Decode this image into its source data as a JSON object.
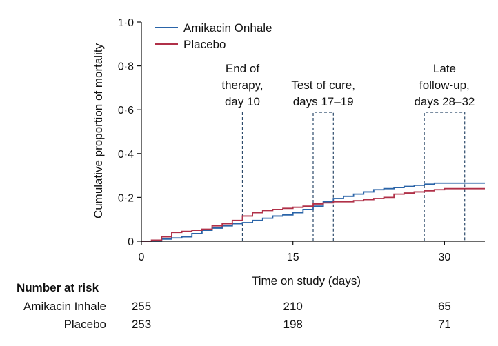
{
  "chart_data": {
    "type": "line",
    "step": true,
    "xlabel": "Time on study (days)",
    "ylabel": "Cumulative proportion of mortality",
    "xlim": [
      0,
      34
    ],
    "ylim": [
      0,
      1.0
    ],
    "xticks": [
      0,
      15,
      30
    ],
    "yticks": [
      {
        "value": 0,
        "label": "0"
      },
      {
        "value": 0.2,
        "label": "0·2"
      },
      {
        "value": 0.4,
        "label": "0·4"
      },
      {
        "value": 0.6,
        "label": "0·6"
      },
      {
        "value": 0.8,
        "label": "0·8"
      },
      {
        "value": 1.0,
        "label": "1·0"
      }
    ],
    "legend_position": "top-left",
    "series": [
      {
        "name": "Amikacin Onhale",
        "color": "#2a64a8",
        "x": [
          0,
          2,
          3,
          4,
          5,
          6,
          7,
          8,
          9,
          10,
          11,
          12,
          13,
          14,
          15,
          16,
          17,
          18,
          19,
          20,
          21,
          22,
          23,
          24,
          25,
          26,
          27,
          28,
          29,
          30,
          31,
          32,
          33,
          34
        ],
        "y": [
          0,
          0.01,
          0.015,
          0.02,
          0.035,
          0.05,
          0.06,
          0.07,
          0.08,
          0.085,
          0.095,
          0.105,
          0.115,
          0.12,
          0.13,
          0.145,
          0.16,
          0.18,
          0.195,
          0.205,
          0.215,
          0.225,
          0.235,
          0.24,
          0.245,
          0.25,
          0.255,
          0.26,
          0.265,
          0.265,
          0.265,
          0.265,
          0.265,
          0.265
        ]
      },
      {
        "name": "Placebo",
        "color": "#b03048",
        "x": [
          0,
          1,
          2,
          3,
          4,
          5,
          6,
          7,
          8,
          9,
          10,
          11,
          12,
          13,
          14,
          15,
          16,
          17,
          18,
          19,
          20,
          21,
          22,
          23,
          24,
          25,
          26,
          27,
          28,
          29,
          30,
          31,
          32,
          33,
          34
        ],
        "y": [
          0,
          0.005,
          0.02,
          0.04,
          0.045,
          0.05,
          0.055,
          0.07,
          0.08,
          0.095,
          0.115,
          0.13,
          0.14,
          0.145,
          0.15,
          0.155,
          0.16,
          0.17,
          0.175,
          0.18,
          0.18,
          0.185,
          0.19,
          0.195,
          0.2,
          0.215,
          0.22,
          0.225,
          0.23,
          0.235,
          0.24,
          0.24,
          0.24,
          0.24,
          0.24
        ]
      }
    ],
    "markers": [
      {
        "type": "line",
        "x": 10,
        "lines": [
          "End of",
          "therapy,",
          "day 10"
        ]
      },
      {
        "type": "window",
        "x_start": 17,
        "x_end": 19,
        "lines": [
          "Test of cure,",
          "days 17–19"
        ]
      },
      {
        "type": "window",
        "x_start": 28,
        "x_end": 32,
        "lines": [
          "Late",
          "follow-up,",
          "days 28–32"
        ]
      }
    ]
  },
  "risk_table": {
    "title": "Number at risk",
    "columns": [
      0,
      15,
      30
    ],
    "rows": [
      {
        "label": "Amikacin Inhale",
        "values": [
          "255",
          "210",
          "65"
        ]
      },
      {
        "label": "Placebo",
        "values": [
          "253",
          "198",
          "71"
        ]
      }
    ]
  }
}
